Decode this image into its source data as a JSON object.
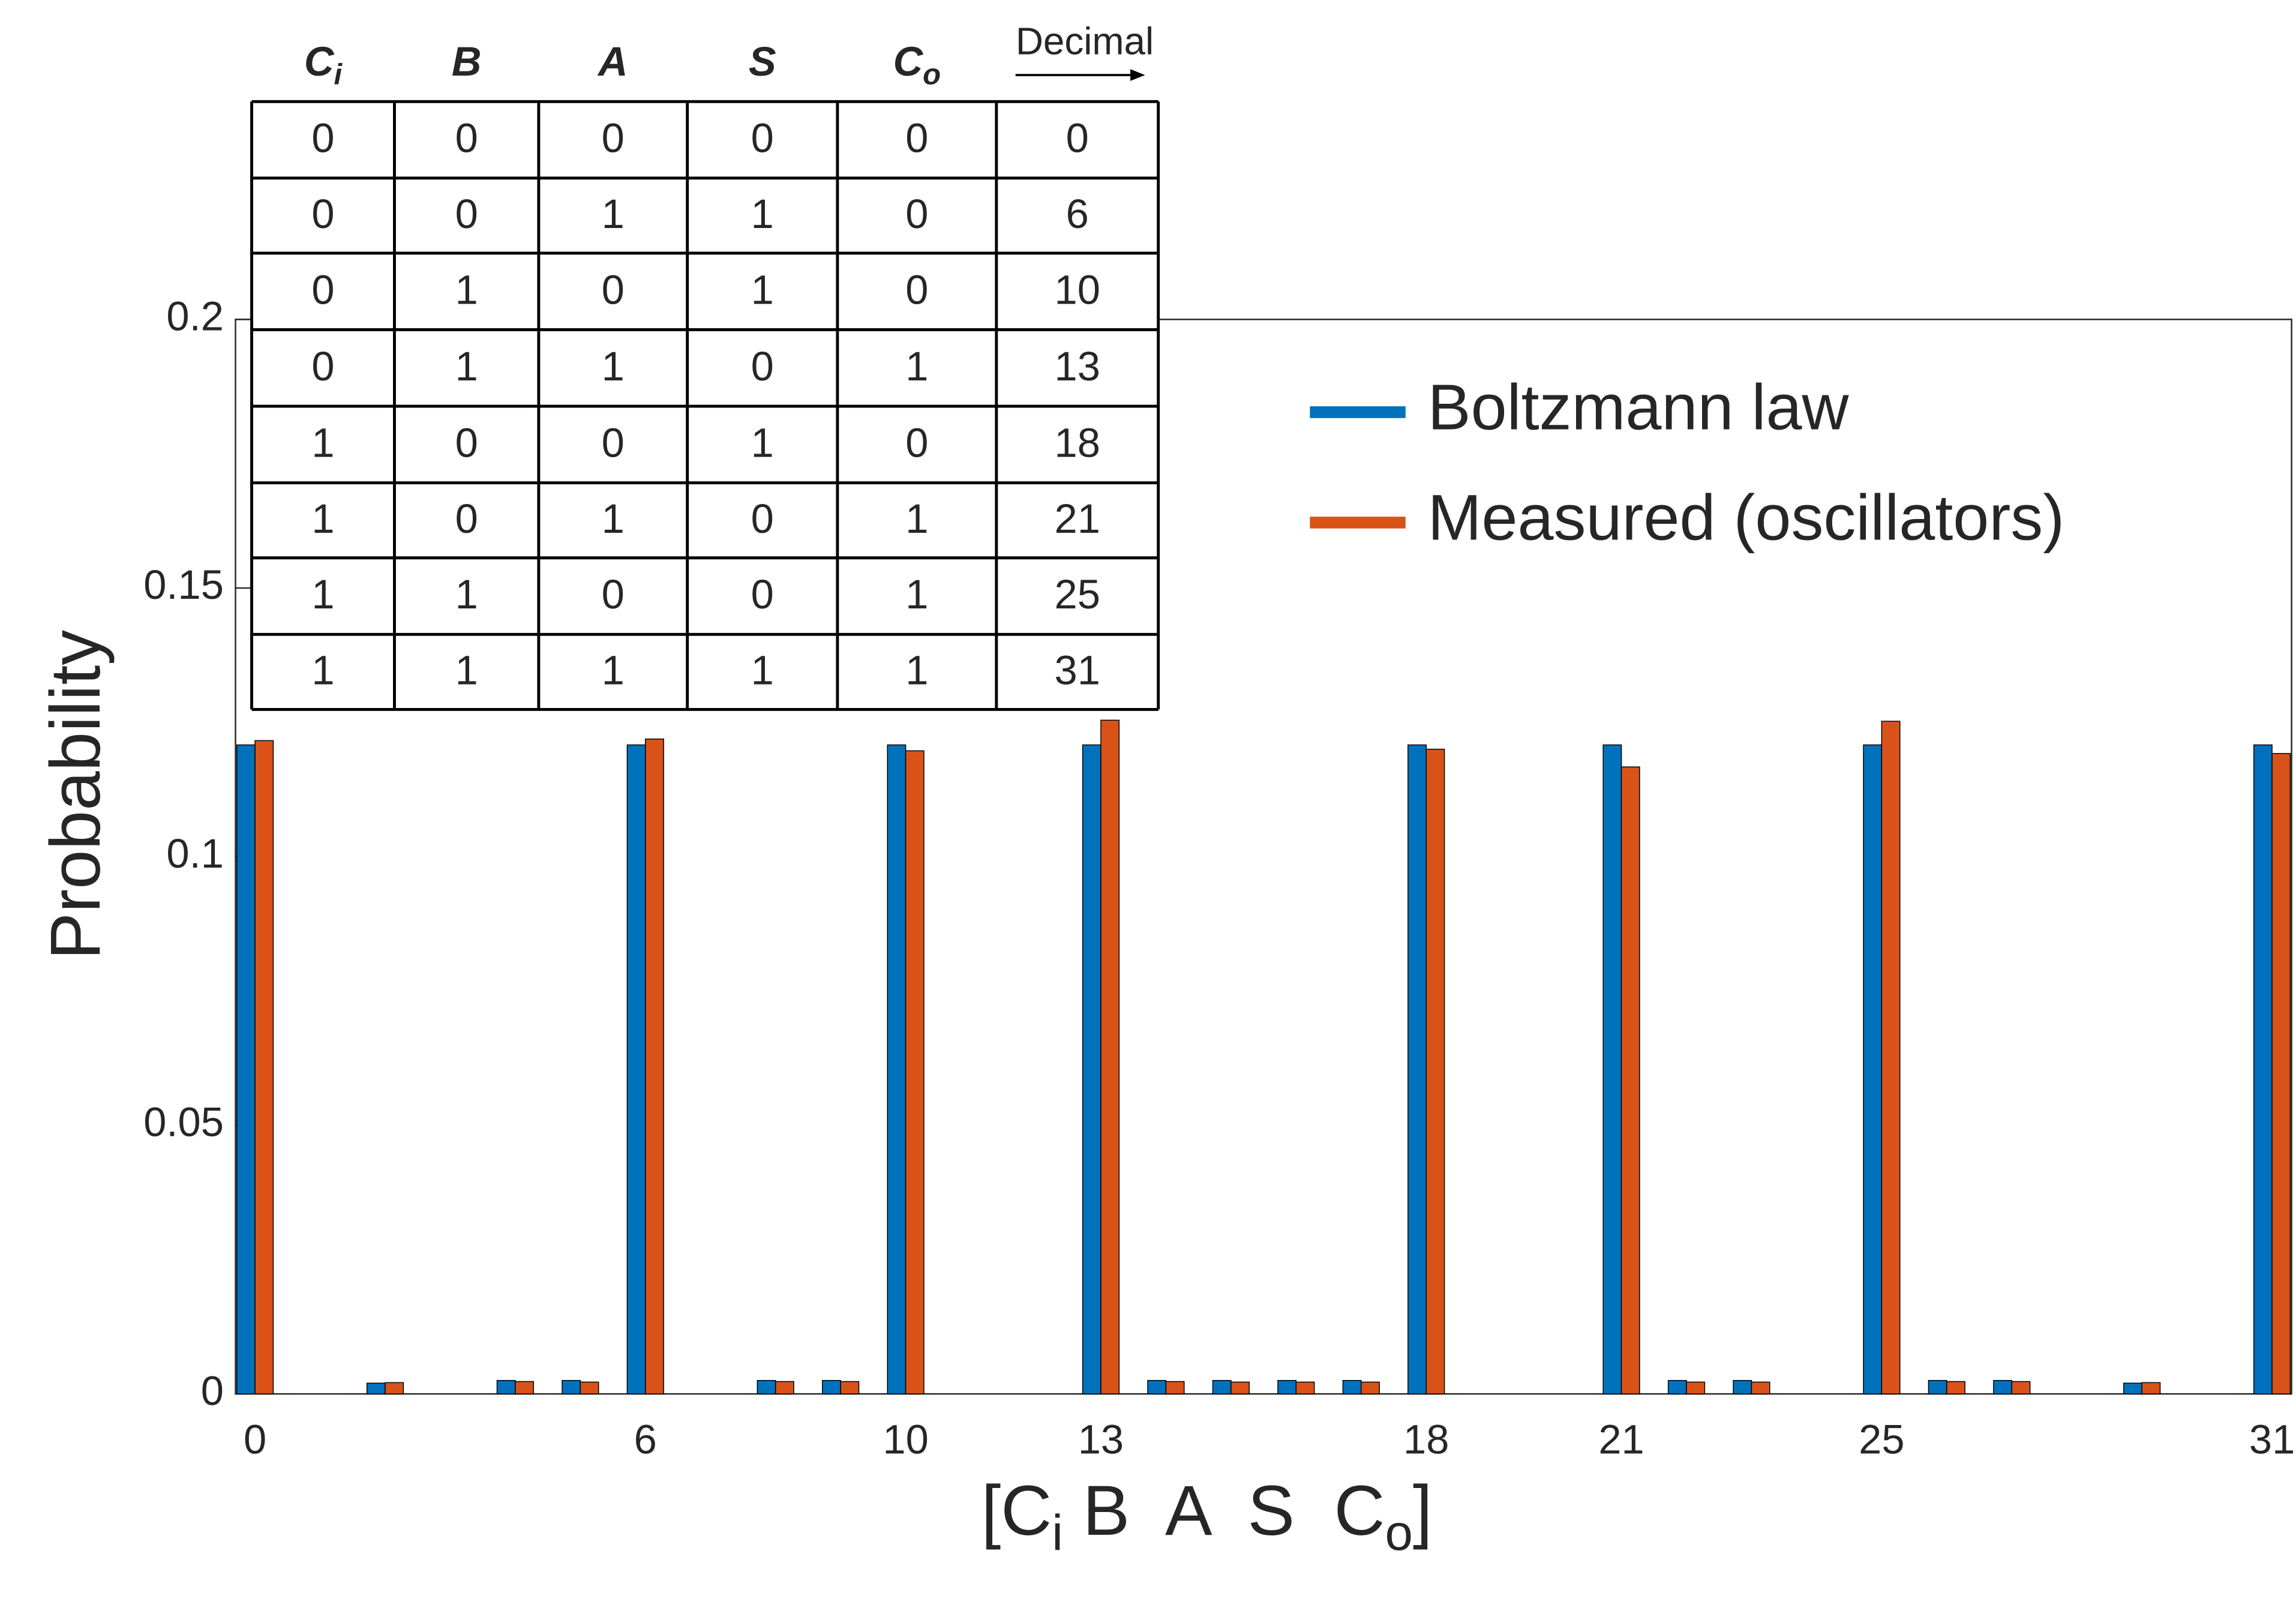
{
  "chart_data": {
    "type": "bar",
    "xlabel": [
      "[C",
      "i",
      " B  A  S  C",
      "o",
      "]"
    ],
    "ylabel": "Probability",
    "x": [
      0,
      1,
      2,
      3,
      4,
      5,
      6,
      7,
      8,
      9,
      10,
      11,
      12,
      13,
      14,
      15,
      16,
      17,
      18,
      19,
      20,
      21,
      22,
      23,
      24,
      25,
      26,
      27,
      28,
      29,
      30,
      31
    ],
    "series": [
      {
        "name": "Boltzmann law",
        "color": "#0072BD",
        "values": [
          0.1208,
          0,
          0.002,
          0,
          0.0025,
          0.0025,
          0.1208,
          0,
          0.0025,
          0.0025,
          0.1208,
          0,
          0,
          0.1208,
          0.0025,
          0.0025,
          0.0025,
          0.0025,
          0.1208,
          0,
          0,
          0.1208,
          0.0025,
          0.0025,
          0,
          0.1208,
          0.0025,
          0.0025,
          0,
          0.002,
          0,
          0.1208
        ]
      },
      {
        "name": "Measured (oscillators)",
        "color": "#D95319",
        "values": [
          0.1216,
          0,
          0.0021,
          0,
          0.0023,
          0.0022,
          0.1219,
          0,
          0.0023,
          0.0023,
          0.1197,
          0,
          0,
          0.1254,
          0.0023,
          0.0022,
          0.0022,
          0.0022,
          0.12,
          0,
          0,
          0.1167,
          0.0022,
          0.0022,
          0,
          0.1252,
          0.0023,
          0.0023,
          0,
          0.0021,
          0,
          0.1192
        ]
      }
    ],
    "xlim": [
      -0.3,
      31.3
    ],
    "xticks": [
      0,
      6,
      10,
      13,
      18,
      21,
      25,
      31
    ],
    "ylim": [
      0,
      0.2
    ],
    "yticks": [
      0,
      0.05,
      0.1,
      0.15,
      0.2
    ],
    "grid": false,
    "legend": "northeast"
  },
  "table": {
    "header": [
      [
        "C",
        "i"
      ],
      "B",
      "A",
      "S",
      [
        "C",
        "o"
      ],
      "Decimal"
    ],
    "rows": [
      [
        0,
        0,
        0,
        0,
        0,
        0
      ],
      [
        0,
        0,
        1,
        1,
        0,
        6
      ],
      [
        0,
        1,
        0,
        1,
        0,
        10
      ],
      [
        0,
        1,
        1,
        0,
        1,
        13
      ],
      [
        1,
        0,
        0,
        1,
        0,
        18
      ],
      [
        1,
        0,
        1,
        0,
        1,
        21
      ],
      [
        1,
        1,
        0,
        0,
        1,
        25
      ],
      [
        1,
        1,
        1,
        1,
        1,
        31
      ]
    ]
  }
}
